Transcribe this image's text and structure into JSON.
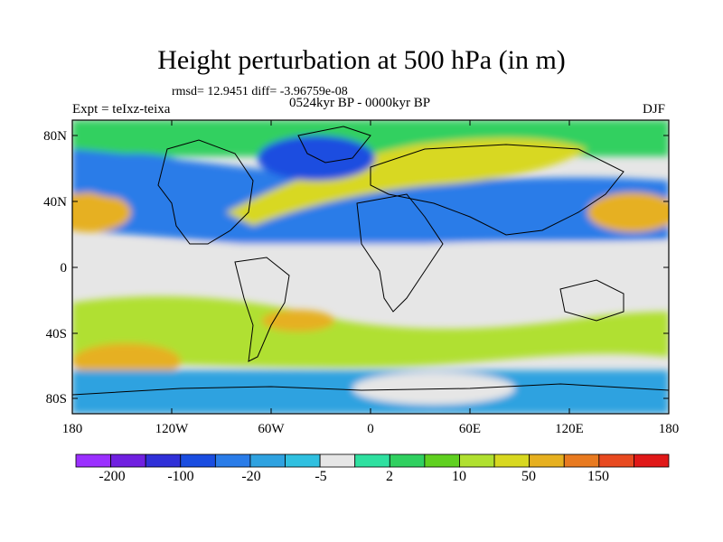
{
  "figure": {
    "title": "Height perturbation at 500 hPa (in m)",
    "stats": "rmsd= 12.9451 diff= -3.96759e-08",
    "period": "0524kyr BP - 0000kyr BP",
    "experiment": "Expt = teIxz-teixa",
    "season": "DJF"
  },
  "axes": {
    "lat_ticks": [
      "80N",
      "40N",
      "0",
      "40S",
      "80S"
    ],
    "lon_ticks": [
      "180",
      "120W",
      "60W",
      "0",
      "60E",
      "120E",
      "180"
    ]
  },
  "colorbar": {
    "colors": [
      "#9b30ff",
      "#7020e0",
      "#3030d8",
      "#1a4de0",
      "#2a7ce8",
      "#2fa2e0",
      "#30c0e0",
      "#e6e6e6",
      "#2fe0a0",
      "#30d060",
      "#60d020",
      "#b0e030",
      "#d8d820",
      "#e6b020",
      "#e87a20",
      "#e84a20",
      "#e01818"
    ],
    "labels": [
      "-200",
      "-100",
      "-20",
      "-5",
      "2",
      "10",
      "50",
      "150"
    ]
  },
  "regions": [
    {
      "name": "arctic-band",
      "color": "#30d060"
    },
    {
      "name": "n-pacific-low",
      "color": "#2a7ce8"
    },
    {
      "name": "greenland-low",
      "color": "#1a4de0"
    },
    {
      "name": "atlantic-eurasia-high",
      "color": "#d8d820"
    },
    {
      "name": "midlat-low-belt",
      "color": "#2a7ce8"
    },
    {
      "name": "subtropical-pacific-high",
      "color": "#e6b020"
    },
    {
      "name": "tropics-neutral",
      "color": "#e6e6e6"
    },
    {
      "name": "southern-high-ring",
      "color": "#b0e030"
    },
    {
      "name": "antarctic-low",
      "color": "#2fa2e0"
    }
  ]
}
